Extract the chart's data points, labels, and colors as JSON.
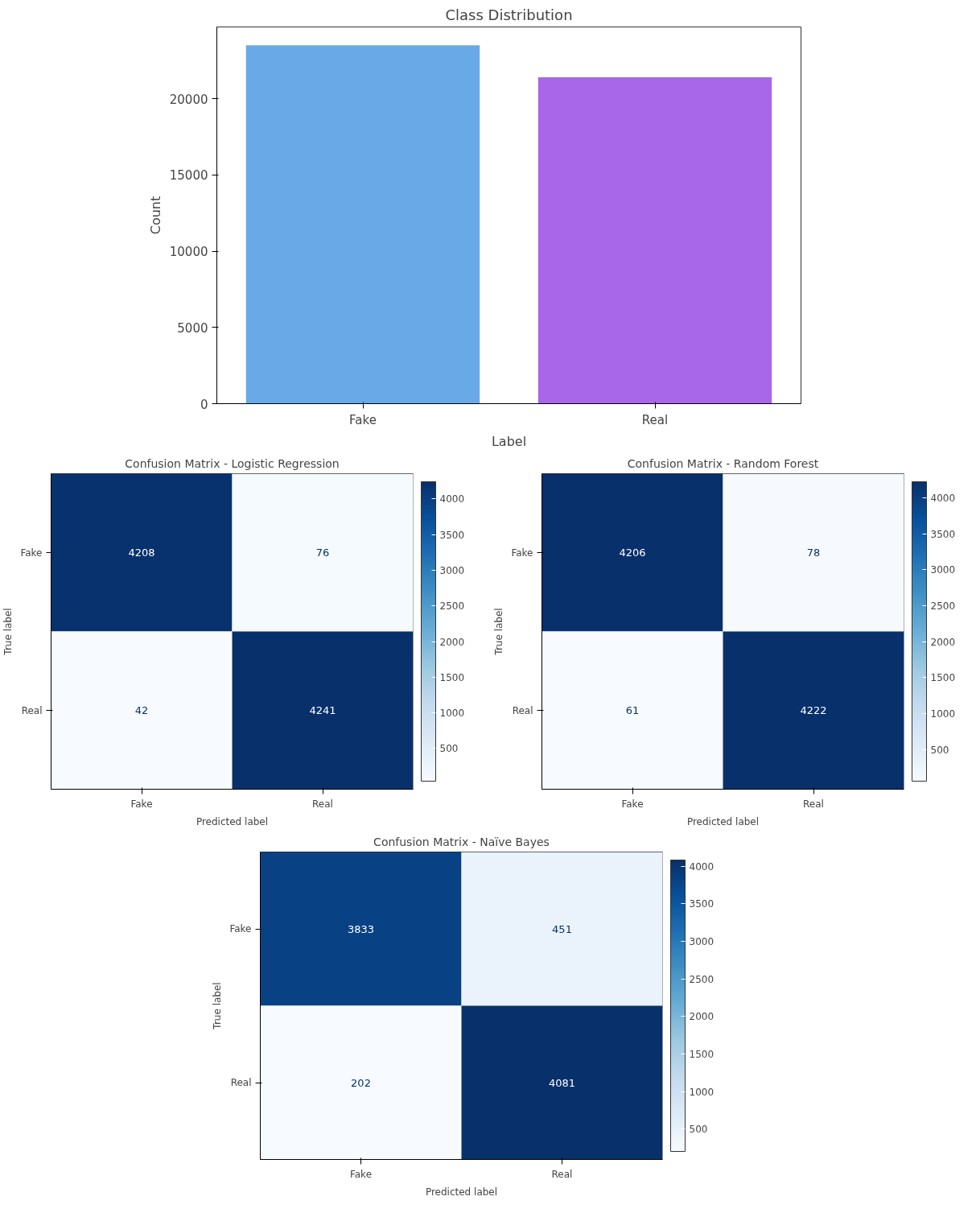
{
  "chart_data": [
    {
      "type": "bar",
      "title": "Class Distribution",
      "xlabel": "Label",
      "ylabel": "Count",
      "categories": [
        "Fake",
        "Real"
      ],
      "values": [
        23500,
        21400
      ],
      "colors": [
        "#6aa9e8",
        "#a866e8"
      ],
      "ylim": [
        0,
        24700
      ],
      "yticks": [
        0,
        5000,
        10000,
        15000,
        20000
      ]
    },
    {
      "type": "heatmap",
      "title": "Confusion Matrix - Logistic Regression",
      "xlabel": "Predicted label",
      "ylabel": "True label",
      "categories": [
        "Fake",
        "Real"
      ],
      "y_categories": [
        "Fake",
        "Real"
      ],
      "cells": [
        [
          4208,
          76
        ],
        [
          42,
          4241
        ]
      ],
      "clim": [
        42,
        4241
      ],
      "cticks": [
        500,
        1000,
        1500,
        2000,
        2500,
        3000,
        3500,
        4000
      ],
      "data_labels": true
    },
    {
      "type": "heatmap",
      "title": "Confusion Matrix - Random Forest",
      "xlabel": "Predicted label",
      "ylabel": "True label",
      "categories": [
        "Fake",
        "Real"
      ],
      "y_categories": [
        "Fake",
        "Real"
      ],
      "cells": [
        [
          4206,
          78
        ],
        [
          61,
          4222
        ]
      ],
      "clim": [
        61,
        4222
      ],
      "cticks": [
        500,
        1000,
        1500,
        2000,
        2500,
        3000,
        3500,
        4000
      ],
      "data_labels": true
    },
    {
      "type": "heatmap",
      "title": "Confusion Matrix - Naïve Bayes",
      "xlabel": "Predicted label",
      "ylabel": "True label",
      "categories": [
        "Fake",
        "Real"
      ],
      "y_categories": [
        "Fake",
        "Real"
      ],
      "cells": [
        [
          3833,
          451
        ],
        [
          202,
          4081
        ]
      ],
      "clim": [
        202,
        4081
      ],
      "cticks": [
        500,
        1000,
        1500,
        2000,
        2500,
        3000,
        3500,
        4000
      ],
      "data_labels": true
    }
  ]
}
